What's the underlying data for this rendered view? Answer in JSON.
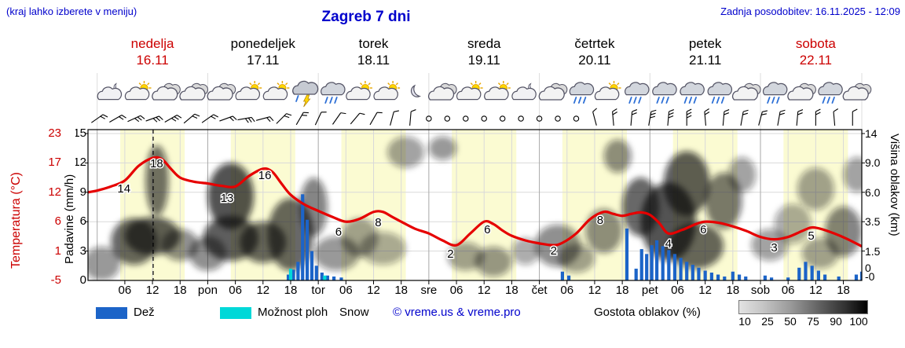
{
  "header": {
    "menu_hint": "(kraj lahko izberete v meniju)",
    "title": "Zagreb 7 dni",
    "last_update": "Zadnja posodobitev: 16.11.2025 - 12:09"
  },
  "colors": {
    "accent_red": "#cc0000",
    "link_blue": "#0000cc",
    "rain": "#1c64c8",
    "shower": "#00d8d8",
    "temp_curve": "#e60000",
    "day_band": "#fbfbd2"
  },
  "days": [
    {
      "name": "nedelja",
      "date": "16.11",
      "red": true
    },
    {
      "name": "ponedeljek",
      "date": "17.11",
      "red": false
    },
    {
      "name": "torek",
      "date": "18.11",
      "red": false
    },
    {
      "name": "sreda",
      "date": "19.11",
      "red": false
    },
    {
      "name": "četrtek",
      "date": "20.11",
      "red": false
    },
    {
      "name": "petek",
      "date": "21.11",
      "red": false
    },
    {
      "name": "sobota",
      "date": "22.11",
      "red": true
    }
  ],
  "axes": {
    "temperature": {
      "title": "Temperatura (°C)",
      "ticks": [
        "23",
        "17",
        "12",
        "6",
        "1",
        "-5"
      ]
    },
    "precipitation": {
      "title": "Padavine (mm/h)",
      "ticks": [
        "15",
        "12",
        "9",
        "6",
        "3",
        "0"
      ]
    },
    "cloud_height": {
      "title": "Višina oblakov (km)",
      "ticks": [
        "14",
        "9.0",
        "6.0",
        "3.5",
        "1.5",
        "0",
        "-0"
      ]
    },
    "x_hour_labels": [
      "06",
      "12",
      "18"
    ],
    "x_day_abbrs": [
      "pon",
      "tor",
      "sre",
      "čet",
      "pet",
      "sob"
    ]
  },
  "legend": {
    "rain_label": "Dež",
    "shower_label": "Možnost ploh",
    "snow_label": "Snow",
    "copyright": "© vreme.us & vreme.pro",
    "cloud_density_title": "Gostota oblakov (%)",
    "scale_labels": [
      "10",
      "25",
      "50",
      "75",
      "90",
      "100"
    ]
  },
  "chart_data": {
    "type": "line",
    "description": "7-day meteogram for Zagreb: temperature line (°C), precipitation bars (mm/h), cloud-cover shading vs height (km), weather icons and wind barbs; x = hours since 16.11 00:00",
    "x_range_hours": [
      -2,
      166
    ],
    "current_time_h": 12.15,
    "daylight_band_hours": [
      5,
      19
    ],
    "temperature": {
      "unit": "°C",
      "series": [
        [
          -2,
          12
        ],
        [
          0,
          12.3
        ],
        [
          3,
          13
        ],
        [
          6,
          14
        ],
        [
          9,
          16.5
        ],
        [
          12,
          18
        ],
        [
          14,
          17.8
        ],
        [
          16,
          16
        ],
        [
          18,
          14.5
        ],
        [
          21,
          13.8
        ],
        [
          24,
          13.5
        ],
        [
          27,
          13.1
        ],
        [
          30,
          13
        ],
        [
          33,
          14.8
        ],
        [
          36,
          16
        ],
        [
          38,
          15.5
        ],
        [
          40,
          13.5
        ],
        [
          42,
          11.5
        ],
        [
          45,
          9.5
        ],
        [
          48,
          8.2
        ],
        [
          51,
          7
        ],
        [
          54,
          6
        ],
        [
          57,
          6.6
        ],
        [
          60,
          8
        ],
        [
          62,
          8
        ],
        [
          64,
          7
        ],
        [
          66,
          6
        ],
        [
          69,
          4.8
        ],
        [
          72,
          4
        ],
        [
          75,
          2.8
        ],
        [
          78,
          2
        ],
        [
          81,
          4
        ],
        [
          84,
          6
        ],
        [
          86,
          5.6
        ],
        [
          88,
          4.5
        ],
        [
          90,
          3.6
        ],
        [
          93,
          2.8
        ],
        [
          96,
          2.3
        ],
        [
          99,
          2
        ],
        [
          101,
          2.4
        ],
        [
          104,
          4
        ],
        [
          107,
          6.5
        ],
        [
          110,
          8
        ],
        [
          112,
          7.6
        ],
        [
          114,
          7.2
        ],
        [
          116,
          7.6
        ],
        [
          118,
          7.9
        ],
        [
          120,
          7.4
        ],
        [
          122,
          5.8
        ],
        [
          124,
          4
        ],
        [
          127,
          4.6
        ],
        [
          130,
          5.6
        ],
        [
          132,
          6
        ],
        [
          135,
          5.8
        ],
        [
          138,
          5.2
        ],
        [
          141,
          4.4
        ],
        [
          144,
          3.4
        ],
        [
          147,
          3
        ],
        [
          150,
          3.4
        ],
        [
          153,
          4.4
        ],
        [
          155,
          5
        ],
        [
          157,
          4.8
        ],
        [
          160,
          4
        ],
        [
          163,
          3
        ],
        [
          166,
          1.8
        ]
      ],
      "point_labels": [
        [
          5.8,
          245,
          "14"
        ],
        [
          12.9,
          213,
          "18"
        ],
        [
          28.2,
          257,
          "13"
        ],
        [
          36.4,
          228,
          "16"
        ],
        [
          52.4,
          300,
          "6"
        ],
        [
          61,
          288,
          "8"
        ],
        [
          76.7,
          328,
          "2"
        ],
        [
          84.7,
          297,
          "6"
        ],
        [
          99.1,
          324,
          "2"
        ],
        [
          109.2,
          285,
          "8"
        ],
        [
          124,
          315,
          "4"
        ],
        [
          131.6,
          297,
          "6"
        ],
        [
          147,
          320,
          "3"
        ],
        [
          155,
          305,
          "5"
        ]
      ]
    },
    "precipitation": {
      "unit": "mm/h",
      "rain": [
        [
          41.5,
          0.6
        ],
        [
          42.6,
          1.1
        ],
        [
          43.6,
          1.9
        ],
        [
          44.6,
          8.8
        ],
        [
          45.6,
          6.2
        ],
        [
          46.6,
          3.0
        ],
        [
          47.6,
          1.5
        ],
        [
          48.8,
          0.8
        ],
        [
          50,
          0.5
        ],
        [
          51.4,
          0.4
        ],
        [
          53,
          0.3
        ],
        [
          101,
          0.9
        ],
        [
          102.4,
          0.5
        ],
        [
          115,
          5.3
        ],
        [
          117,
          1.2
        ],
        [
          118.2,
          3.2
        ],
        [
          119.3,
          2.7
        ],
        [
          120.4,
          3.6
        ],
        [
          121.5,
          4.1
        ],
        [
          122.8,
          3.5
        ],
        [
          124.1,
          3.1
        ],
        [
          125.4,
          2.7
        ],
        [
          126.7,
          2.3
        ],
        [
          128,
          1.9
        ],
        [
          129.3,
          1.6
        ],
        [
          130.6,
          1.3
        ],
        [
          132,
          1.0
        ],
        [
          133.4,
          0.8
        ],
        [
          134.8,
          0.6
        ],
        [
          136.2,
          0.4
        ],
        [
          138,
          0.9
        ],
        [
          139.4,
          0.6
        ],
        [
          140.8,
          0.4
        ],
        [
          145,
          0.5
        ],
        [
          146.4,
          0.3
        ],
        [
          150,
          0.3
        ],
        [
          152.4,
          1.3
        ],
        [
          153.8,
          1.9
        ],
        [
          155.2,
          1.5
        ],
        [
          156.6,
          1.0
        ],
        [
          158,
          0.6
        ],
        [
          161,
          0.4
        ],
        [
          164.8,
          0.6
        ],
        [
          166,
          0.9
        ]
      ],
      "showers": [
        [
          42,
          1.2
        ],
        [
          49.4,
          0.5
        ]
      ]
    },
    "clouds": {
      "unit": "[hour, height_km, half_width_h, half_height_km, density]",
      "blobs": [
        [
          1,
          0.9,
          4,
          0.9,
          0.55
        ],
        [
          8,
          2.3,
          5,
          1.5,
          0.8
        ],
        [
          13,
          8,
          2.5,
          4,
          0.75
        ],
        [
          12,
          2.6,
          6,
          1.3,
          0.85
        ],
        [
          18,
          2,
          4,
          1,
          0.6
        ],
        [
          24,
          1.5,
          4,
          1,
          0.6
        ],
        [
          29,
          6,
          5,
          3,
          0.9
        ],
        [
          29,
          2.5,
          6,
          1.5,
          0.85
        ],
        [
          36,
          2.2,
          5,
          1.3,
          0.8
        ],
        [
          42,
          3,
          5,
          2.5,
          0.8
        ],
        [
          47,
          5,
          3,
          2.5,
          0.65
        ],
        [
          52,
          1.5,
          5,
          1,
          0.55
        ],
        [
          57,
          2.5,
          4,
          1.3,
          0.5
        ],
        [
          62,
          1.8,
          5,
          1,
          0.45
        ],
        [
          67,
          11,
          4,
          2.5,
          0.5
        ],
        [
          75,
          11.5,
          3,
          2,
          0.55
        ],
        [
          80,
          1.3,
          4,
          0.8,
          0.5
        ],
        [
          86,
          1,
          4,
          0.8,
          0.55
        ],
        [
          93,
          1.6,
          3,
          0.8,
          0.45
        ],
        [
          100,
          2,
          5,
          1.3,
          0.6
        ],
        [
          104,
          1.2,
          4,
          0.8,
          0.5
        ],
        [
          110,
          3,
          4,
          1.6,
          0.6
        ],
        [
          113,
          10.5,
          3,
          2.5,
          0.6
        ],
        [
          118,
          5,
          4,
          2.5,
          0.8
        ],
        [
          124,
          4,
          6,
          3,
          0.9
        ],
        [
          128,
          7.5,
          5,
          3.5,
          0.85
        ],
        [
          130,
          2,
          6,
          1.4,
          0.8
        ],
        [
          136,
          5.5,
          4,
          2.5,
          0.7
        ],
        [
          140,
          8,
          3,
          2,
          0.5
        ],
        [
          146,
          2,
          4,
          1,
          0.5
        ],
        [
          151,
          3.5,
          4,
          1.5,
          0.45
        ],
        [
          156,
          6.5,
          4,
          2,
          0.5
        ],
        [
          157,
          1.5,
          4,
          0.9,
          0.5
        ],
        [
          162,
          3,
          4,
          1.8,
          0.65
        ],
        [
          165,
          8,
          3,
          2,
          0.5
        ]
      ]
    },
    "icons": [
      [
        3,
        "mc"
      ],
      [
        9,
        "sc"
      ],
      [
        15,
        "c"
      ],
      [
        21,
        "c"
      ],
      [
        27,
        "c"
      ],
      [
        33,
        "sc"
      ],
      [
        39,
        "sc"
      ],
      [
        45,
        "t"
      ],
      [
        51,
        "r"
      ],
      [
        57,
        "sc"
      ],
      [
        63,
        "sc"
      ],
      [
        69,
        "m"
      ],
      [
        75,
        "c"
      ],
      [
        81,
        "sc"
      ],
      [
        87,
        "sc"
      ],
      [
        93,
        "mc"
      ],
      [
        99,
        "c"
      ],
      [
        105,
        "r"
      ],
      [
        111,
        "sc"
      ],
      [
        117,
        "r"
      ],
      [
        123,
        "r"
      ],
      [
        129,
        "r"
      ],
      [
        135,
        "r"
      ],
      [
        141,
        "c"
      ],
      [
        147,
        "r"
      ],
      [
        153,
        "c"
      ],
      [
        159,
        "r"
      ],
      [
        165,
        "c"
      ]
    ],
    "wind": [
      [
        0,
        55,
        2
      ],
      [
        4,
        60,
        2
      ],
      [
        8,
        65,
        3
      ],
      [
        12,
        70,
        3
      ],
      [
        16,
        60,
        3
      ],
      [
        20,
        50,
        2
      ],
      [
        24,
        55,
        2
      ],
      [
        28,
        70,
        2
      ],
      [
        32,
        80,
        3
      ],
      [
        36,
        75,
        2
      ],
      [
        40,
        45,
        2
      ],
      [
        44,
        30,
        2
      ],
      [
        48,
        25,
        1
      ],
      [
        52,
        35,
        1
      ],
      [
        56,
        40,
        1
      ],
      [
        60,
        30,
        1
      ],
      [
        64,
        15,
        1
      ],
      [
        68,
        5,
        1
      ],
      [
        72,
        0,
        0
      ],
      [
        76,
        0,
        0
      ],
      [
        80,
        0,
        0
      ],
      [
        84,
        0,
        0
      ],
      [
        88,
        0,
        0
      ],
      [
        92,
        0,
        0
      ],
      [
        96,
        0,
        0
      ],
      [
        100,
        0,
        0
      ],
      [
        104,
        0,
        0
      ],
      [
        108,
        -15,
        1
      ],
      [
        112,
        -5,
        2
      ],
      [
        116,
        5,
        2
      ],
      [
        120,
        10,
        3
      ],
      [
        124,
        5,
        3
      ],
      [
        128,
        0,
        3
      ],
      [
        132,
        -5,
        2
      ],
      [
        136,
        5,
        2
      ],
      [
        140,
        10,
        2
      ],
      [
        144,
        15,
        2
      ],
      [
        148,
        10,
        2
      ],
      [
        152,
        5,
        2
      ],
      [
        156,
        0,
        2
      ],
      [
        160,
        -5,
        1
      ],
      [
        164,
        0,
        1
      ]
    ]
  }
}
